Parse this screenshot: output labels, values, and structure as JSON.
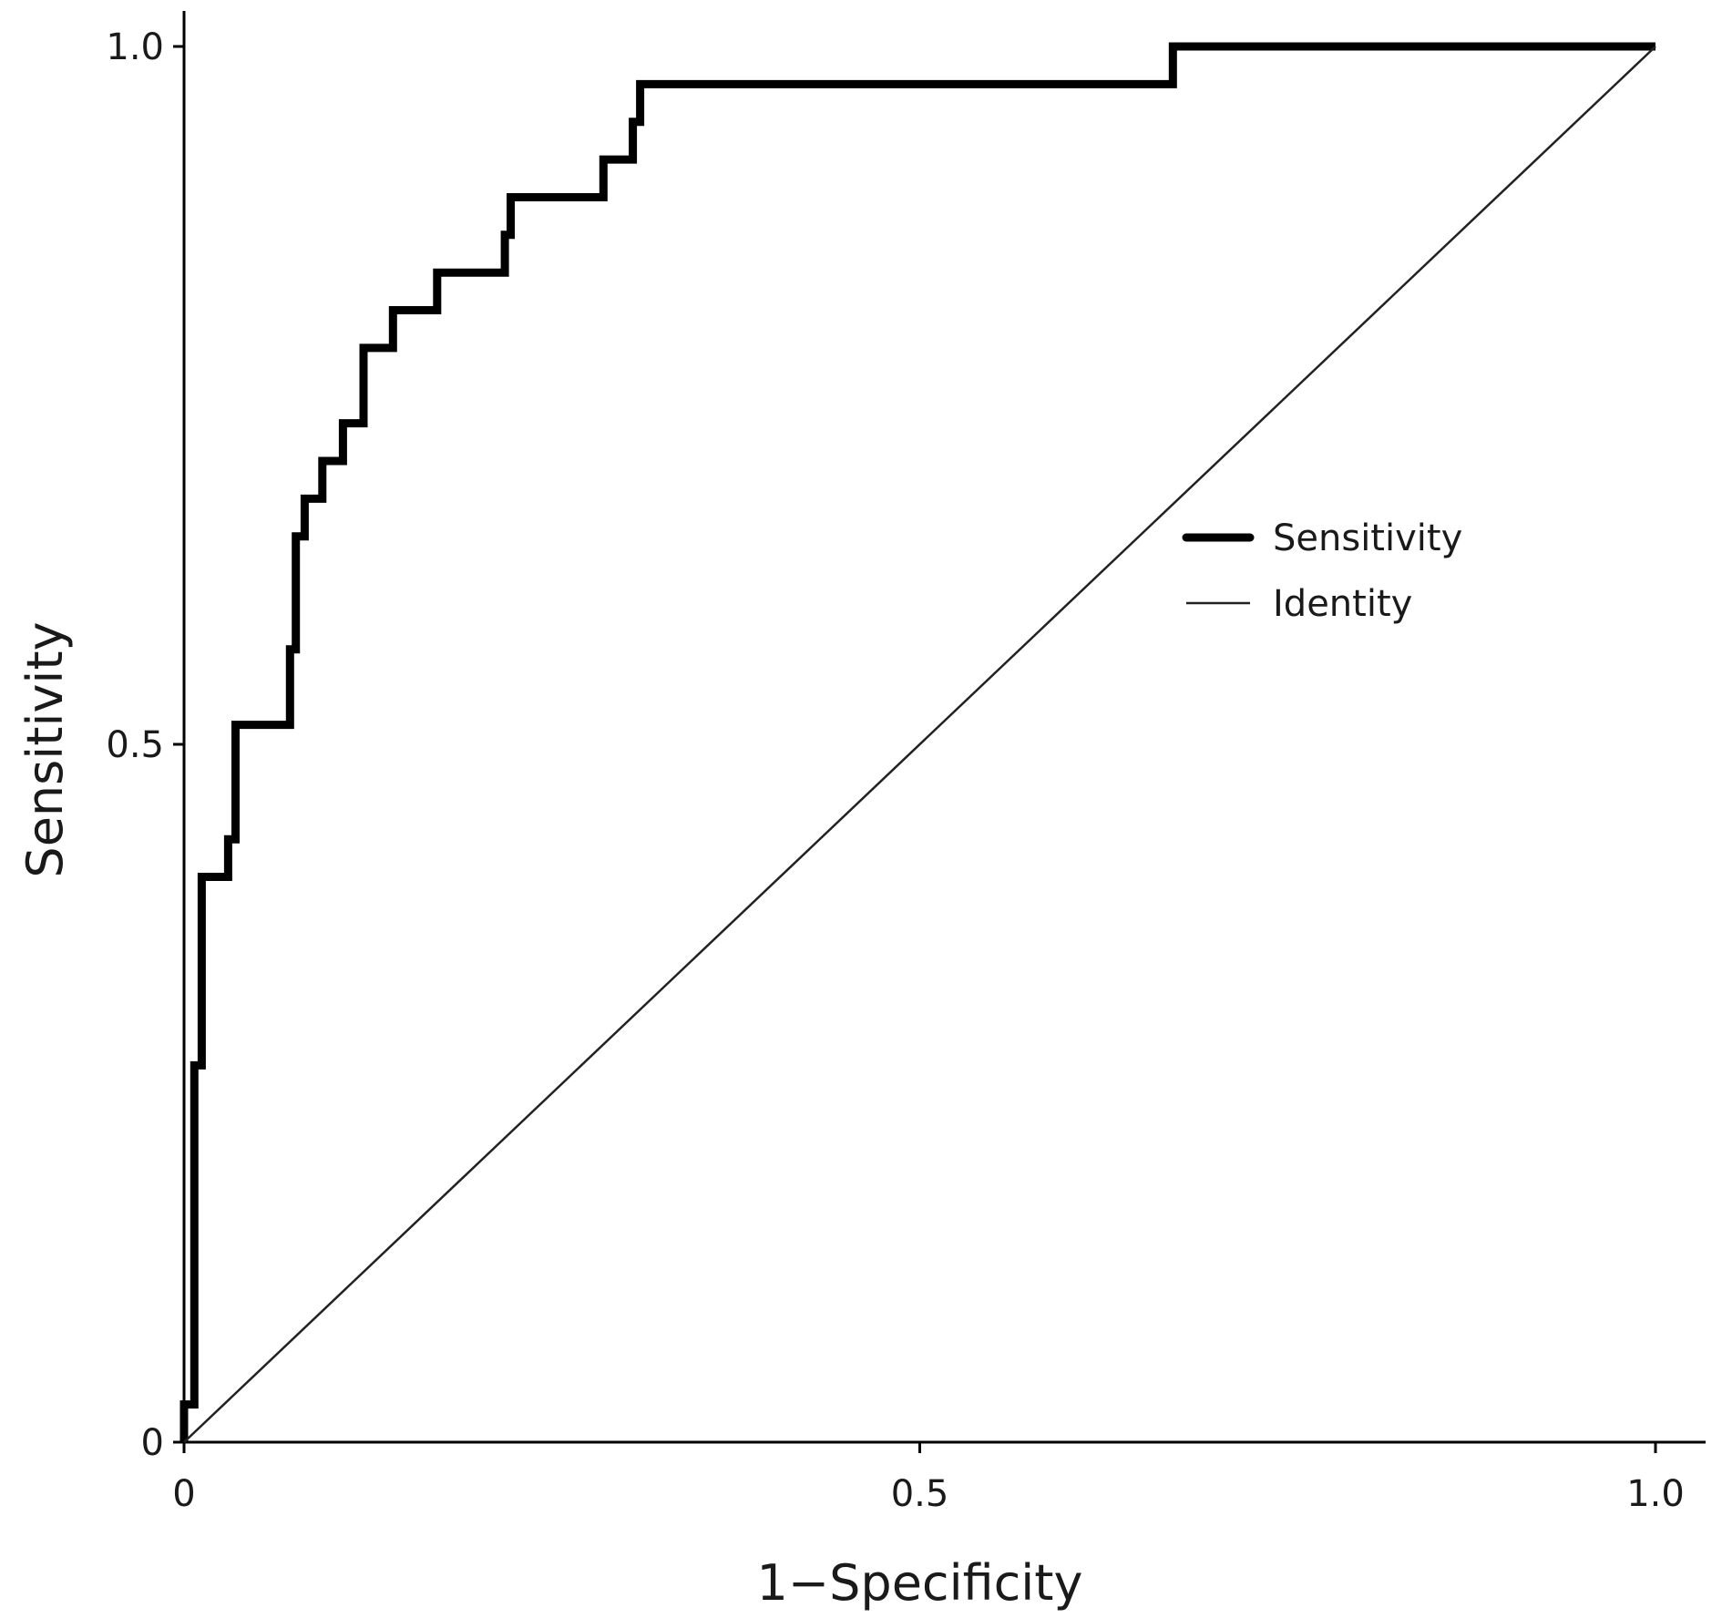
{
  "chart_data": {
    "type": "line",
    "xlabel": "1−Specificity",
    "ylabel": "Sensitivity",
    "xlim": [
      0,
      1
    ],
    "ylim": [
      0,
      1
    ],
    "x_ticks": [
      "0",
      "0.5",
      "1.0"
    ],
    "y_ticks": [
      "0",
      "0.5",
      "1.0"
    ],
    "grid": false,
    "legend_position": "center-right",
    "series": [
      {
        "name": "Sensitivity",
        "style": "step",
        "color": "#000000",
        "points": [
          [
            0.0,
            0.0
          ],
          [
            0.0,
            0.027
          ],
          [
            0.007,
            0.027
          ],
          [
            0.007,
            0.27
          ],
          [
            0.012,
            0.27
          ],
          [
            0.012,
            0.405
          ],
          [
            0.03,
            0.405
          ],
          [
            0.03,
            0.432
          ],
          [
            0.035,
            0.432
          ],
          [
            0.035,
            0.514
          ],
          [
            0.072,
            0.514
          ],
          [
            0.072,
            0.568
          ],
          [
            0.076,
            0.568
          ],
          [
            0.076,
            0.649
          ],
          [
            0.082,
            0.649
          ],
          [
            0.082,
            0.676
          ],
          [
            0.094,
            0.676
          ],
          [
            0.094,
            0.703
          ],
          [
            0.108,
            0.703
          ],
          [
            0.108,
            0.73
          ],
          [
            0.122,
            0.73
          ],
          [
            0.122,
            0.784
          ],
          [
            0.142,
            0.784
          ],
          [
            0.142,
            0.811
          ],
          [
            0.172,
            0.811
          ],
          [
            0.172,
            0.838
          ],
          [
            0.218,
            0.838
          ],
          [
            0.218,
            0.865
          ],
          [
            0.222,
            0.865
          ],
          [
            0.222,
            0.892
          ],
          [
            0.285,
            0.892
          ],
          [
            0.285,
            0.919
          ],
          [
            0.305,
            0.919
          ],
          [
            0.305,
            0.946
          ],
          [
            0.31,
            0.946
          ],
          [
            0.31,
            0.973
          ],
          [
            0.672,
            0.973
          ],
          [
            0.672,
            1.0
          ],
          [
            1.0,
            1.0
          ]
        ]
      },
      {
        "name": "Identity",
        "style": "line",
        "color": "#222222",
        "points": [
          [
            0.0,
            0.0
          ],
          [
            1.0,
            1.0
          ]
        ]
      }
    ]
  }
}
